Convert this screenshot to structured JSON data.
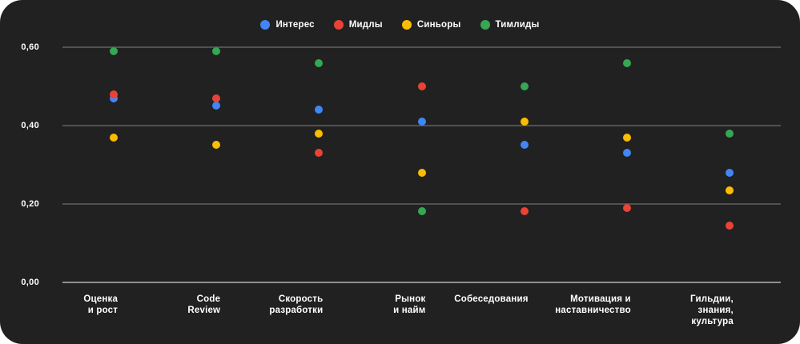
{
  "card": {
    "background": "#212121",
    "text_color": "#ffffff"
  },
  "legend": {
    "position": "top-center",
    "items": [
      {
        "label": "Интерес",
        "color": "#4285F4"
      },
      {
        "label": "Мидлы",
        "color": "#EA4335"
      },
      {
        "label": "Синьоры",
        "color": "#FBBC04"
      },
      {
        "label": "Тимлиды",
        "color": "#34A853"
      }
    ]
  },
  "chart_data": {
    "type": "scatter",
    "title": "",
    "xlabel": "",
    "ylabel": "",
    "grid": "horizontal",
    "legend_position": "top",
    "categories": [
      "Оценка и рост",
      "Code Review",
      "Скорость разработки",
      "Рынок и найм",
      "Собеседования",
      "Мотивация и наставничество",
      "Гильдии, знания, культура"
    ],
    "category_lines": [
      [
        "Оценка",
        "и рост"
      ],
      [
        "Code",
        "Review"
      ],
      [
        "Скорость",
        "разработки"
      ],
      [
        "Рынок",
        "и найм"
      ],
      [
        "Собеседования"
      ],
      [
        "Мотивация и",
        "наставничество"
      ],
      [
        "Гильдии,",
        "знания,",
        "культура"
      ]
    ],
    "series": [
      {
        "name": "Интерес",
        "color": "#4285F4",
        "values": [
          0.47,
          0.45,
          0.44,
          0.41,
          0.35,
          0.33,
          0.28
        ]
      },
      {
        "name": "Мидлы",
        "color": "#EA4335",
        "values": [
          0.48,
          0.47,
          0.33,
          0.5,
          0.18,
          0.19,
          0.145
        ]
      },
      {
        "name": "Синьоры",
        "color": "#FBBC04",
        "values": [
          0.37,
          0.35,
          0.38,
          0.28,
          0.41,
          0.37,
          0.235
        ]
      },
      {
        "name": "Тимлиды",
        "color": "#34A853",
        "values": [
          0.59,
          0.59,
          0.56,
          0.18,
          0.5,
          0.56,
          0.38
        ]
      }
    ],
    "y_axis": {
      "range": [
        0.0,
        0.6
      ],
      "tick_values": [
        0.6,
        0.4,
        0.2,
        0.0
      ],
      "tick_labels": [
        "0,60",
        "0,40",
        "0,20",
        "0,00"
      ]
    },
    "colors": {
      "gridline": "rgba(255,255,255,0.22)",
      "axis_line": "#8f8f8f"
    }
  }
}
